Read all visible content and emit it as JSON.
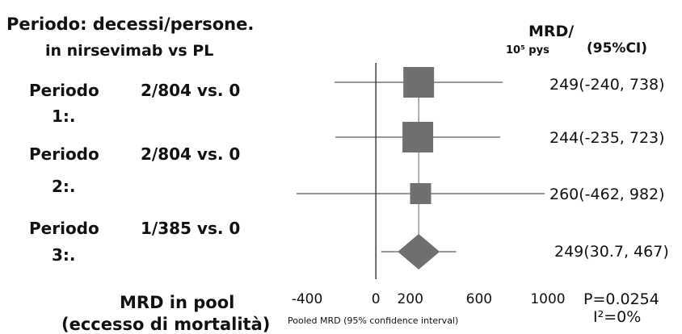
{
  "header": {
    "line1": "Periodo: decessi/persone.",
    "line2": "in nirsevimab vs PL"
  },
  "mrd_header": {
    "title": "MRD/",
    "unit": "10⁵ pys",
    "ci": "(95%CI)"
  },
  "rows": [
    {
      "name": "Periodo",
      "counts": "2/804  vs.  0",
      "sub": "1:.",
      "ci_text": "249(-240, 738)"
    },
    {
      "name": "Periodo",
      "counts": "2/804  vs.  0",
      "sub": "2:.",
      "ci_text": "244(-235, 723)"
    },
    {
      "name": "Periodo",
      "counts": "1/385  vs.  0",
      "sub": "3:.",
      "ci_text": "260(-462, 982)"
    },
    {
      "ci_text": "249(30.7, 467)"
    }
  ],
  "pooled": {
    "label_line1": "MRD in pool",
    "label_line2": "(eccesso di mortalità)"
  },
  "stats": {
    "p": "P=0.0254",
    "i2": "I²=0%"
  },
  "colors": {
    "marker": "#6f6f6f",
    "line": "#333333"
  },
  "chart_data": {
    "type": "forest",
    "xlabel": "Pooled MRD (95% confidence interval)",
    "xlim": [
      -400,
      1000
    ],
    "xticks": [
      -400,
      0,
      200,
      600,
      1000
    ],
    "reference_line": 0,
    "studies": [
      {
        "estimate": 249,
        "lower": -240,
        "upper": 738,
        "marker": "square",
        "weight": "large"
      },
      {
        "estimate": 244,
        "lower": -235,
        "upper": 723,
        "marker": "square",
        "weight": "large"
      },
      {
        "estimate": 260,
        "lower": -462,
        "upper": 982,
        "marker": "square",
        "weight": "small"
      }
    ],
    "pooled": {
      "estimate": 249,
      "lower": 30.7,
      "upper": 467,
      "marker": "diamond"
    }
  }
}
